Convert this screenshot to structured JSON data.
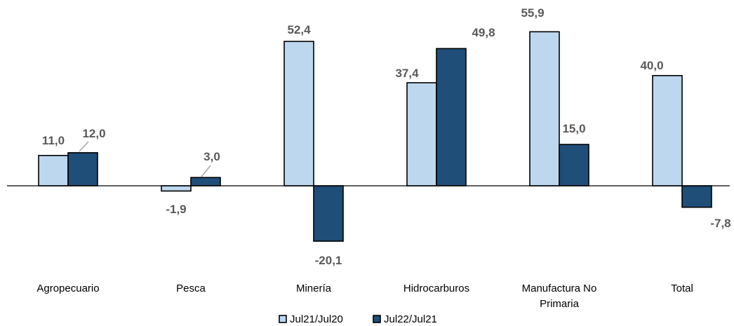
{
  "chart_data": {
    "type": "bar",
    "title": "",
    "xlabel": "",
    "ylabel": "",
    "categories": [
      [
        "Agropecuario"
      ],
      [
        "Pesca"
      ],
      [
        "Minería"
      ],
      [
        "Hidrocarburos"
      ],
      [
        "Manufactura No",
        "Primaria"
      ],
      [
        "Total"
      ]
    ],
    "series": [
      {
        "name": "Jul21/Jul20",
        "color": "#bdd7ee",
        "values": [
          11.0,
          -1.9,
          52.4,
          37.4,
          55.9,
          40.0
        ],
        "labels": [
          "11,0",
          "-1,9",
          "52,4",
          "37,4",
          "55,9",
          "40,0"
        ]
      },
      {
        "name": "Jul22/Jul21",
        "color": "#1f4e79",
        "values": [
          12.0,
          3.0,
          -20.1,
          49.8,
          15.0,
          -7.8
        ],
        "labels": [
          "12,0",
          "3,0",
          "-20,1",
          "49,8",
          "15,0",
          "-7,8"
        ]
      }
    ],
    "ylim": [
      -20.1,
      55.9
    ],
    "grid": false,
    "legend": "bottom"
  }
}
